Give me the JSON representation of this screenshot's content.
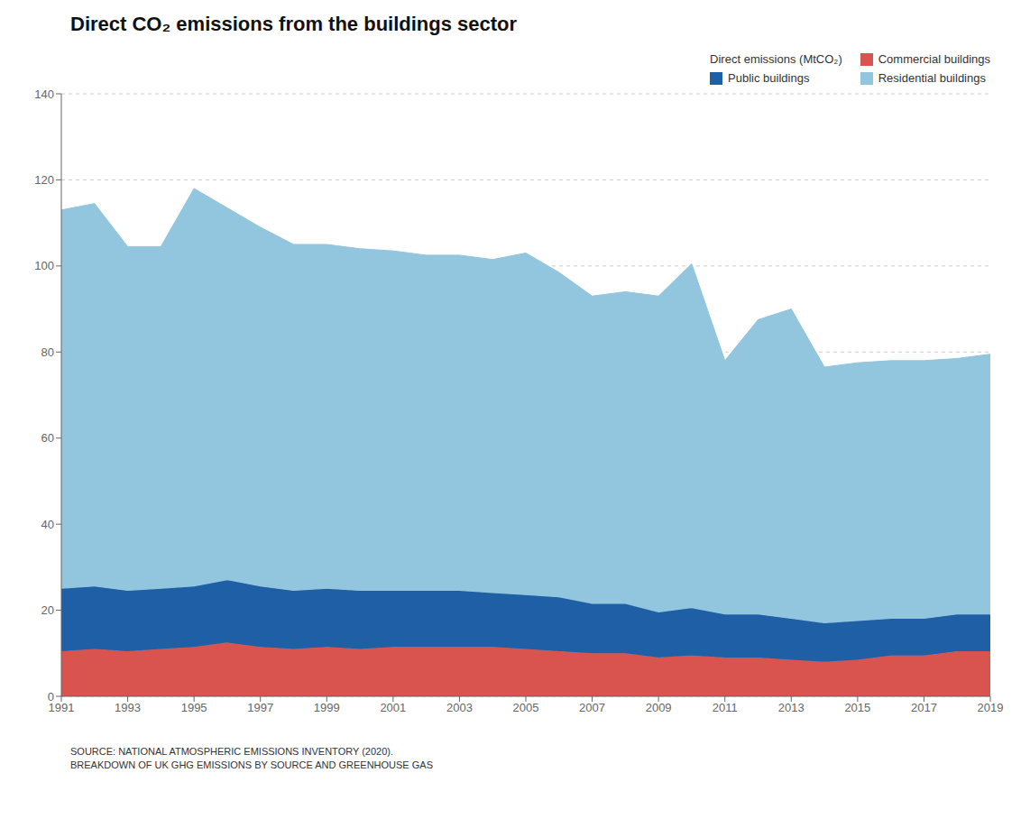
{
  "chart_data": {
    "type": "area",
    "title": "Direct CO₂ emissions from the buildings sector",
    "x": [
      1991,
      1992,
      1993,
      1994,
      1995,
      1996,
      1997,
      1998,
      1999,
      2000,
      2001,
      2002,
      2003,
      2004,
      2005,
      2006,
      2007,
      2008,
      2009,
      2010,
      2011,
      2012,
      2013,
      2014,
      2015,
      2016,
      2017,
      2018,
      2019
    ],
    "series": [
      {
        "name": "Commercial buildings",
        "color": "#d9534f",
        "values": [
          10.5,
          11.0,
          10.5,
          11.0,
          11.5,
          12.5,
          11.5,
          11.0,
          11.5,
          11.0,
          11.5,
          11.5,
          11.5,
          11.5,
          11.0,
          10.5,
          10.0,
          10.0,
          9.0,
          9.5,
          9.0,
          9.0,
          8.5,
          8.0,
          8.5,
          9.5,
          9.5,
          10.5,
          10.5
        ]
      },
      {
        "name": "Public buildings",
        "color": "#1f5fa6",
        "values": [
          14.5,
          14.5,
          14.0,
          14.0,
          14.0,
          14.5,
          14.0,
          13.5,
          13.5,
          13.5,
          13.0,
          13.0,
          13.0,
          12.5,
          12.5,
          12.5,
          11.5,
          11.5,
          10.5,
          11.0,
          10.0,
          10.0,
          9.5,
          9.0,
          9.0,
          8.5,
          8.5,
          8.5,
          8.5
        ]
      },
      {
        "name": "Residential buildings",
        "color": "#92c5de",
        "values": [
          88.0,
          89.0,
          80.0,
          79.5,
          92.5,
          86.5,
          83.5,
          80.5,
          80.0,
          79.5,
          79.0,
          78.0,
          78.0,
          77.5,
          79.5,
          75.5,
          71.5,
          72.5,
          73.5,
          80.0,
          59.0,
          68.5,
          72.0,
          59.5,
          60.0,
          60.0,
          60.0,
          59.5,
          60.5
        ]
      }
    ],
    "stacked": true,
    "xlim": [
      1991,
      2019
    ],
    "xticks": [
      1991,
      1993,
      1995,
      1997,
      1999,
      2001,
      2003,
      2005,
      2007,
      2009,
      2011,
      2013,
      2015,
      2017,
      2019
    ],
    "ylim": [
      0,
      140
    ],
    "yticks": [
      0,
      20,
      40,
      60,
      80,
      100,
      120,
      140
    ],
    "grid": true,
    "legend": "upper right",
    "legend_title": "Direct emissions (MtCO₂)",
    "annotations": [
      "SOURCE: NATIONAL ATMOSPHERIC EMISSIONS INVENTORY (2020).\nBREAKDOWN OF UK GHG EMISSIONS BY SOURCE AND GREENHOUSE GAS"
    ]
  }
}
